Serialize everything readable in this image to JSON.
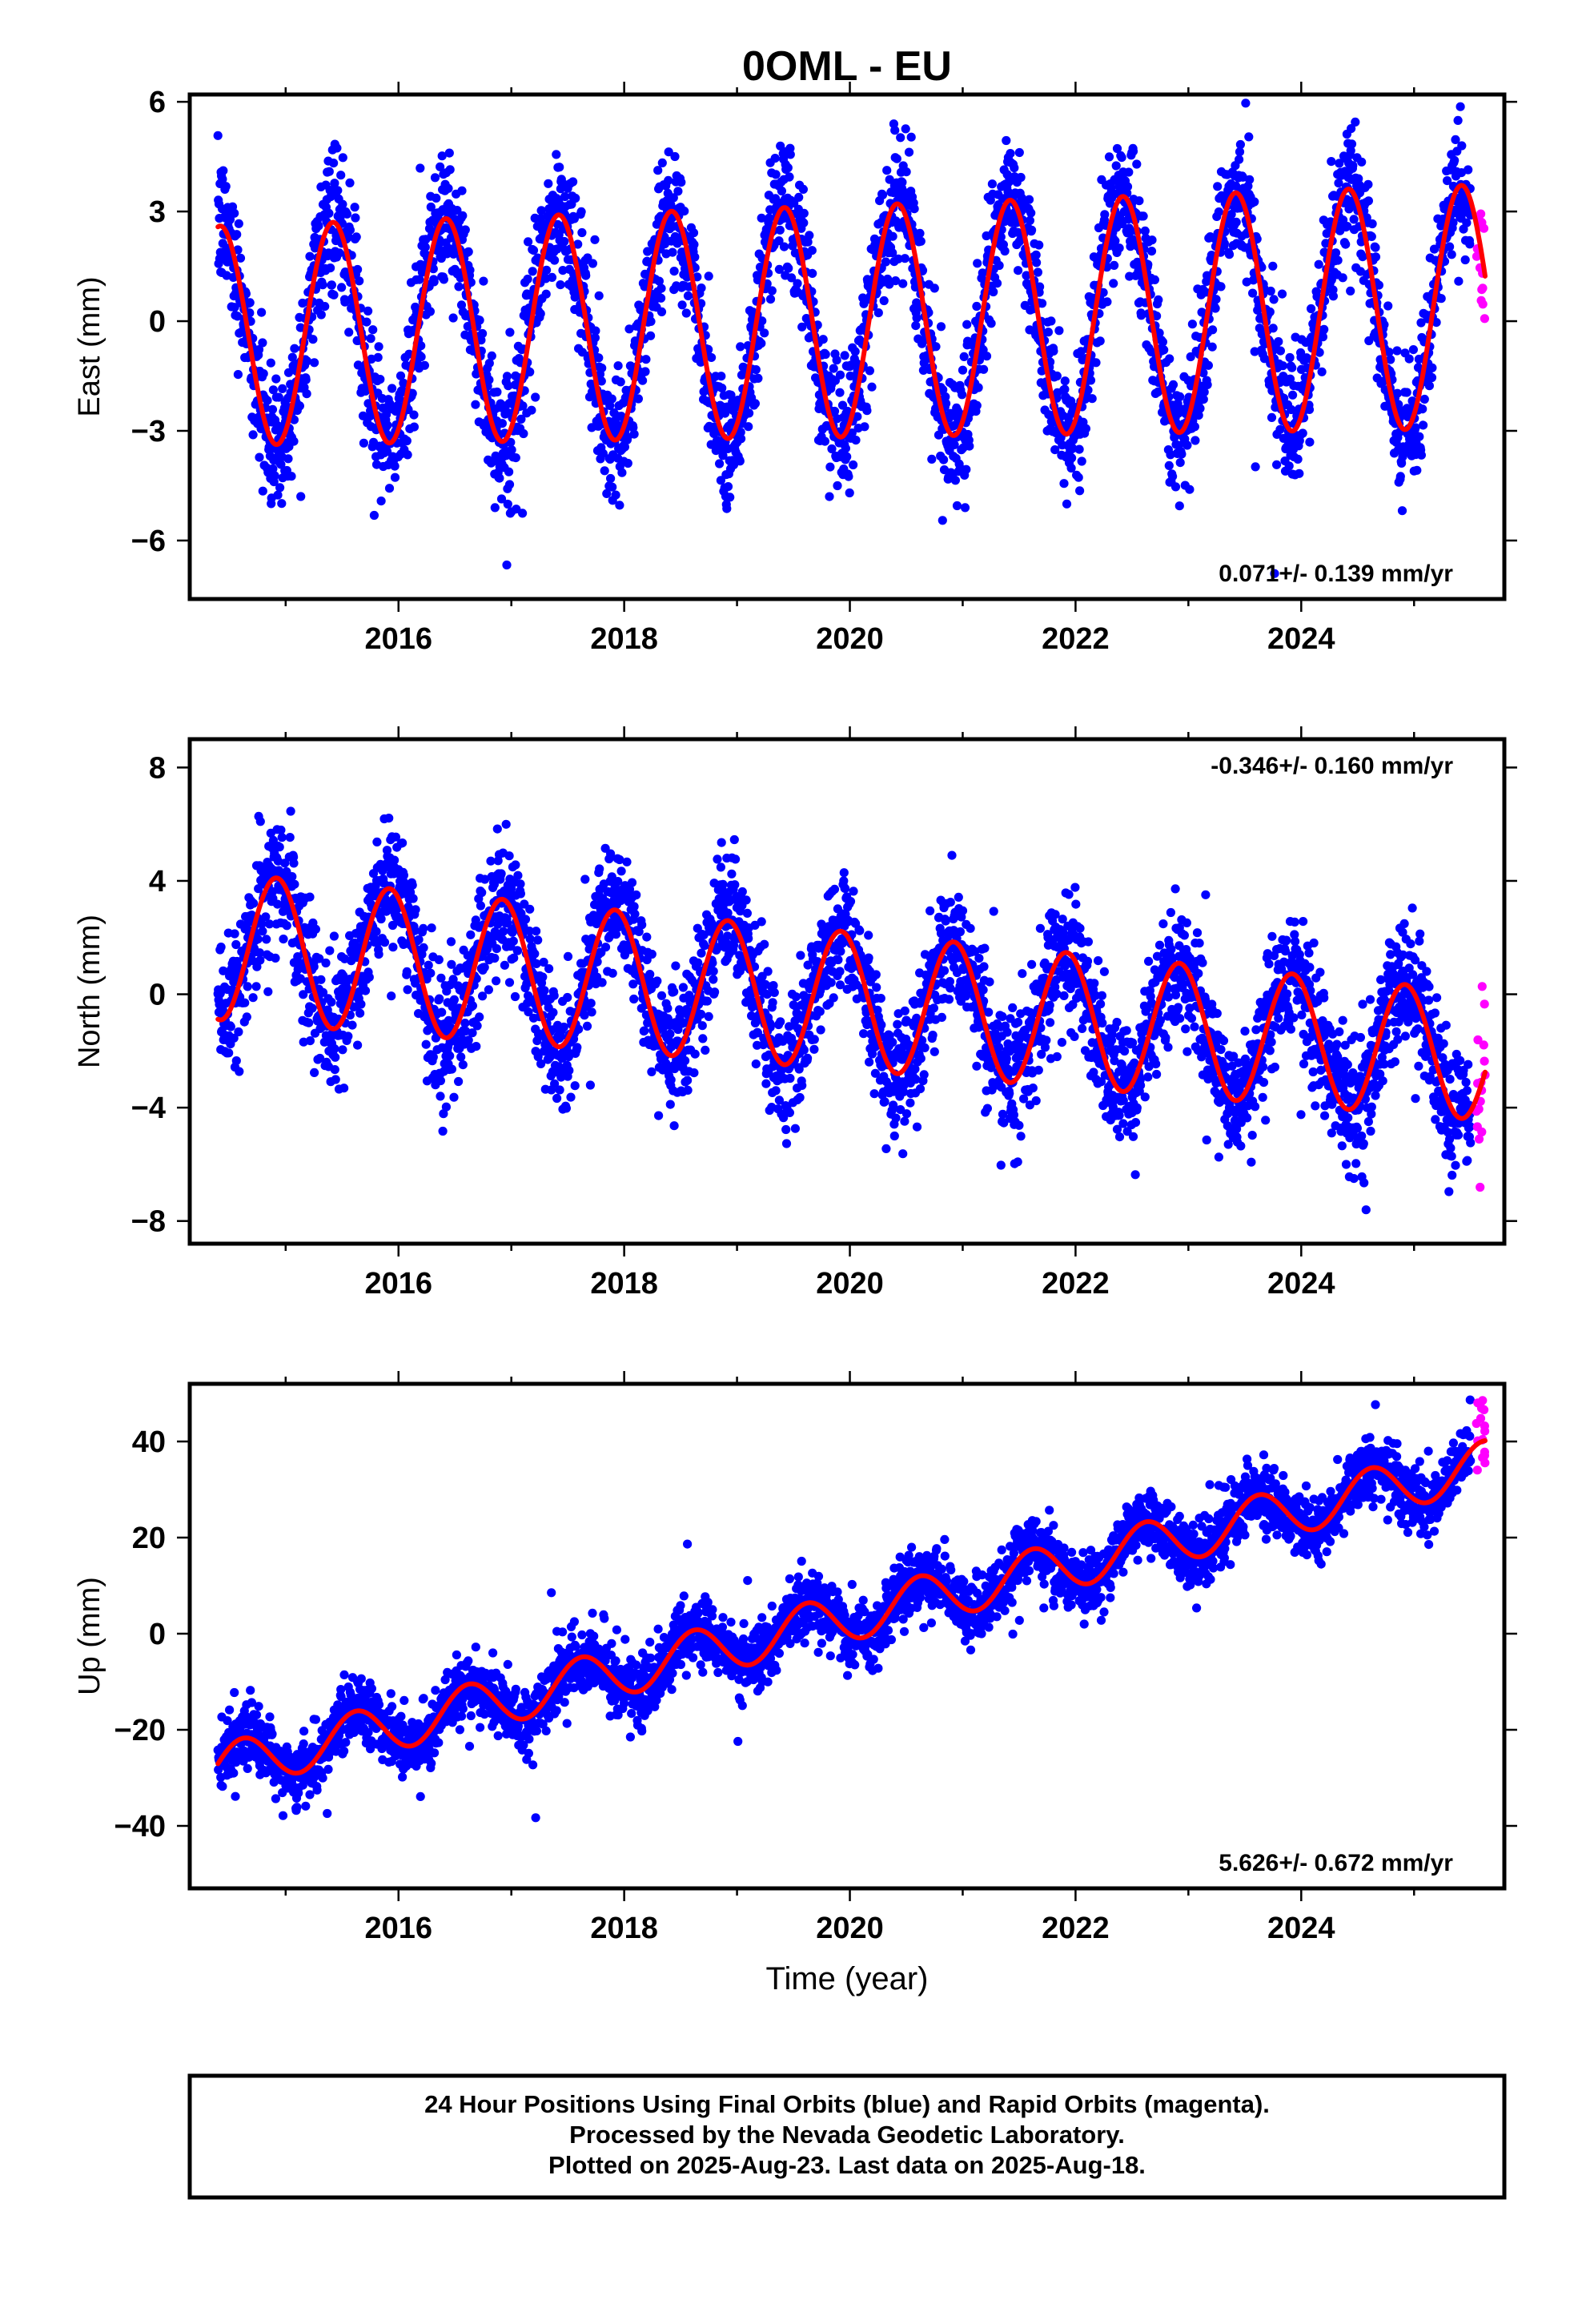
{
  "title": "0OML - EU",
  "xlabel": "Time (year)",
  "colors": {
    "final": "#0000ff",
    "rapid": "#ff00ff",
    "model": "#ff0000",
    "frame": "#000000"
  },
  "footer": {
    "line1": "24 Hour Positions Using Final Orbits (blue) and Rapid Orbits (magenta).",
    "line2": "Processed by the Nevada Geodetic Laboratory.",
    "line3": "Plotted on 2025-Aug-23. Last data on 2025-Aug-18."
  },
  "chart_data": [
    {
      "type": "scatter",
      "component": "east",
      "ylabel": "East (mm)",
      "rate_label": "0.071+/- 0.139 mm/yr",
      "rate_position": "bottom-right",
      "xlim": [
        2014.15,
        2025.8
      ],
      "ylim": [
        -7.6,
        6.2
      ],
      "xticks": [
        2016,
        2018,
        2020,
        2022,
        2024
      ],
      "xticklabels": [
        "2016",
        "2018",
        "2020",
        "2022",
        "2024"
      ],
      "yticks": [
        -6,
        -3,
        0,
        3,
        6
      ],
      "yticklabels": [
        "−6",
        "−3",
        "0",
        "3",
        "6"
      ],
      "data_start": 2014.4,
      "data_end": 2025.5,
      "rapid_start": 2025.55,
      "rapid_end": 2025.63,
      "model": {
        "offset": 0.0,
        "rate": 0.071,
        "ref_year": 2020.0,
        "annual_amp": 3.0,
        "annual_amp_trend": 0.03,
        "phase_peak_year": 0.42,
        "noise_sd": 0.9
      },
      "series": [
        {
          "name": "Final Orbits",
          "color": "#0000ff",
          "n": 3600
        },
        {
          "name": "Rapid Orbits",
          "color": "#ff00ff",
          "n": 16
        },
        {
          "name": "Model",
          "color": "#ff0000"
        }
      ]
    },
    {
      "type": "scatter",
      "component": "north",
      "ylabel": "North (mm)",
      "rate_label": "-0.346+/- 0.160 mm/yr",
      "rate_position": "top-right",
      "xlim": [
        2014.15,
        2025.8
      ],
      "ylim": [
        -8.8,
        9.0
      ],
      "xticks": [
        2016,
        2018,
        2020,
        2022,
        2024
      ],
      "xticklabels": [
        "2016",
        "2018",
        "2020",
        "2022",
        "2024"
      ],
      "yticks": [
        -8,
        -4,
        0,
        4,
        8
      ],
      "yticklabels": [
        "−8",
        "−4",
        "0",
        "4",
        "8"
      ],
      "data_start": 2014.4,
      "data_end": 2025.5,
      "rapid_start": 2025.55,
      "rapid_end": 2025.63,
      "model": {
        "offset": 1.7,
        "rate": -0.346,
        "ref_year": 2014.4,
        "annual_amp": 2.6,
        "annual_amp_trend": -0.03,
        "phase_peak_year": 0.92,
        "noise_sd": 1.1
      },
      "series": [
        {
          "name": "Final Orbits",
          "color": "#0000ff",
          "n": 3600
        },
        {
          "name": "Rapid Orbits",
          "color": "#ff00ff",
          "n": 16
        },
        {
          "name": "Model",
          "color": "#ff0000"
        }
      ]
    },
    {
      "type": "scatter",
      "component": "up",
      "ylabel": "Up (mm)",
      "rate_label": "5.626+/- 0.672 mm/yr",
      "rate_position": "bottom-right",
      "xlim": [
        2014.15,
        2025.8
      ],
      "ylim": [
        -53,
        52
      ],
      "xticks": [
        2016,
        2018,
        2020,
        2022,
        2024
      ],
      "xticklabels": [
        "2016",
        "2018",
        "2020",
        "2022",
        "2024"
      ],
      "yticks": [
        -40,
        -20,
        0,
        20,
        40
      ],
      "yticklabels": [
        "−40",
        "−20",
        "0",
        "20",
        "40"
      ],
      "data_start": 2014.4,
      "data_end": 2025.5,
      "rapid_start": 2025.55,
      "rapid_end": 2025.63,
      "model": {
        "offset": -28.0,
        "rate": 5.626,
        "ref_year": 2014.4,
        "annual_amp": 5.0,
        "annual_amp_trend": 0.0,
        "phase_peak_year": 0.62,
        "noise_sd": 3.3
      },
      "series": [
        {
          "name": "Final Orbits",
          "color": "#0000ff",
          "n": 3600
        },
        {
          "name": "Rapid Orbits",
          "color": "#ff00ff",
          "n": 16
        },
        {
          "name": "Model",
          "color": "#ff0000"
        }
      ]
    }
  ]
}
